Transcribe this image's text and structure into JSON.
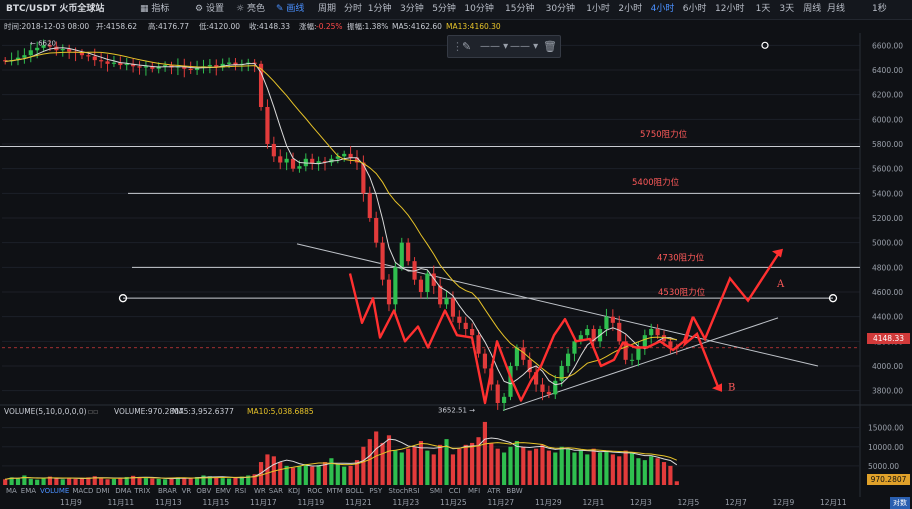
{
  "toolbar": {
    "logo": "BTC/USDT 火币全球站",
    "indicators": "指标",
    "settings": "设置",
    "theme": "亮色",
    "draw": "画线",
    "period": "周期",
    "intervals": [
      "分时",
      "1分钟",
      "3分钟",
      "5分钟",
      "10分钟",
      "15分钟",
      "30分钟",
      "1小时",
      "2小时",
      "4小时",
      "6小时",
      "12小时",
      "1天",
      "3天",
      "周线",
      "月线"
    ],
    "active_interval": "4小时",
    "right": "1秒"
  },
  "info": {
    "time": "时间:2018-12-03 08:00",
    "open": "开:4158.62",
    "high": "高:4176.77",
    "low": "低:4120.00",
    "close": "收:4148.33",
    "change_label": "涨幅:",
    "change": "-0.25%",
    "amplitude": "振幅:1.38%",
    "ma5": "MA5:4162.60",
    "ma13": "MA13:4160.30"
  },
  "volume_info": {
    "label": "VOLUME(5,10,0,0,0,0)",
    "value": "VOLUME:970.2807",
    "ma5": "MA5:3,952.6377",
    "ma10": "MA10:5,038.6885"
  },
  "price_tag": "4148.33",
  "volume_tag": "970.2807",
  "indicator_tabs": [
    "MA",
    "EMA",
    "VOLUME",
    "MACD",
    "DMI",
    "DMA",
    "TRIX",
    "BRAR",
    "VR",
    "OBV",
    "EMV",
    "RSI",
    "WR",
    "SAR",
    "KDJ",
    "ROC",
    "MTM",
    "BOLL",
    "PSY",
    "StochRSI",
    "SMI",
    "CCI",
    "MFI",
    "ATR",
    "BBW"
  ],
  "active_indicator": "VOLUME",
  "corner_button": "对数",
  "colors": {
    "up": "#2fbf4f",
    "down": "#e23b3b",
    "ma5": "#d9d9d9",
    "ma13": "#e6c229",
    "arrow": "#ff3030",
    "annotation": "#ff5a5a",
    "line": "#c9ccd2"
  },
  "chart_data": {
    "type": "candlestick",
    "title": "BTC/USDT 4小时",
    "ylim": [
      3700,
      6700
    ],
    "y_ticks": [
      3800,
      4000,
      4200,
      4400,
      4600,
      4800,
      5000,
      5200,
      5400,
      5600,
      5800,
      6000,
      6200,
      6400,
      6600
    ],
    "volume_ticks": [
      "5000.00",
      "10000.00",
      "15000.00"
    ],
    "volume_ylim": [
      0,
      17000
    ],
    "x_labels": [
      "11月9",
      "11月11",
      "11月13",
      "11月15",
      "11月17",
      "11月19",
      "11月21",
      "11月23",
      "11月25",
      "11月27",
      "11月29",
      "12月1",
      "12月3",
      "12月5",
      "12月7",
      "12月9",
      "12月11"
    ],
    "closes": [
      6470,
      6480,
      6500,
      6520,
      6560,
      6580,
      6600,
      6590,
      6560,
      6570,
      6550,
      6540,
      6520,
      6510,
      6480,
      6470,
      6450,
      6460,
      6440,
      6450,
      6430,
      6420,
      6430,
      6410,
      6430,
      6440,
      6420,
      6430,
      6410,
      6400,
      6420,
      6430,
      6440,
      6420,
      6450,
      6460,
      6440,
      6450,
      6460,
      6450,
      6100,
      5800,
      5700,
      5650,
      5680,
      5600,
      5620,
      5680,
      5640,
      5660,
      5650,
      5680,
      5700,
      5720,
      5690,
      5650,
      5400,
      5200,
      5000,
      4700,
      4500,
      4800,
      5000,
      4850,
      4700,
      4600,
      4750,
      4650,
      4500,
      4550,
      4400,
      4350,
      4300,
      4250,
      4100,
      3980,
      3850,
      3700,
      3750,
      4000,
      4150,
      4050,
      3950,
      3850,
      3790,
      3770,
      3880,
      4000,
      4100,
      4200,
      4250,
      4300,
      4200,
      4300,
      4400,
      4350,
      4200,
      4050,
      4050,
      4150,
      4250,
      4300,
      4250,
      4200,
      4150,
      4148
    ],
    "highs_low_note": "high 6620, low 3652.51",
    "annotations": [
      {
        "text": "5750阻力位",
        "price": 5880
      },
      {
        "text": "5400阻力位",
        "price": 5490
      },
      {
        "text": "4730阻力位",
        "price": 4880
      },
      {
        "text": "4530阻力位",
        "price": 4600
      }
    ],
    "h_lines": [
      5780,
      5400,
      4800,
      4550
    ],
    "scenario_labels": [
      "A",
      "B"
    ],
    "max_label": "6620",
    "min_label": "3652.51",
    "volumes": [
      1500,
      2000,
      1800,
      2500,
      1600,
      1400,
      1800,
      2200,
      1900,
      1500,
      1700,
      1600,
      1800,
      2000,
      2300,
      1800,
      1500,
      1600,
      1900,
      2100,
      2400,
      2000,
      1800,
      1700,
      1600,
      1500,
      1800,
      2000,
      1900,
      1700,
      2100,
      2500,
      2300,
      2000,
      1800,
      1700,
      1900,
      2200,
      2500,
      2800,
      6000,
      8000,
      7500,
      6000,
      5000,
      4500,
      5000,
      5500,
      4800,
      5200,
      6000,
      7000,
      5500,
      4800,
      5000,
      6500,
      10000,
      12000,
      14000,
      11000,
      13000,
      9000,
      8500,
      9500,
      10000,
      11500,
      9000,
      8000,
      10500,
      12000,
      8000,
      9500,
      10500,
      11000,
      12500,
      16500,
      11000,
      9500,
      8500,
      10000,
      11500,
      10000,
      9000,
      9500,
      10500,
      9000,
      8500,
      10000,
      9500,
      8500,
      9000,
      8000,
      9500,
      8500,
      9000,
      8000,
      7500,
      9000,
      8500,
      7000,
      6500,
      7500,
      7000,
      6000,
      5000,
      970
    ]
  }
}
